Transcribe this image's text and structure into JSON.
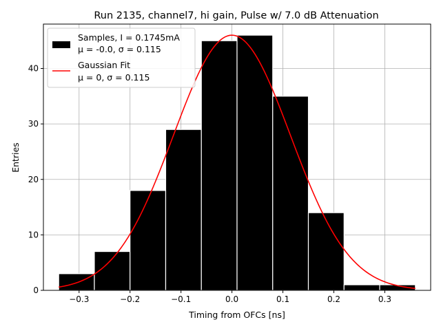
{
  "chart_data": {
    "type": "bar",
    "title": "Run 2135, channel7, hi gain, Pulse w/ 7.0 dB Attenuation",
    "xlabel": "Timing from OFCs [ns]",
    "ylabel": "Entries",
    "xlim": [
      -0.37,
      0.39
    ],
    "ylim": [
      0,
      48
    ],
    "xticks": [
      -0.3,
      -0.2,
      -0.1,
      0.0,
      0.1,
      0.2,
      0.3
    ],
    "xtick_labels": [
      "−0.3",
      "−0.2",
      "−0.1",
      "0.0",
      "0.1",
      "0.2",
      "0.3"
    ],
    "yticks": [
      0,
      10,
      20,
      30,
      40
    ],
    "ytick_labels": [
      "0",
      "10",
      "20",
      "30",
      "40"
    ],
    "grid": true,
    "legend_position": "top-left",
    "histogram": {
      "name_line1": "Samples, I = 0.1745mA",
      "name_line2": "μ = -0.0, σ = 0.115",
      "color": "#000000",
      "edgecolor": "#ffffff",
      "bin_edges": [
        -0.34,
        -0.27,
        -0.2,
        -0.13,
        -0.06,
        0.01,
        0.08,
        0.15,
        0.22,
        0.29,
        0.36
      ],
      "counts": [
        3,
        7,
        18,
        29,
        45,
        46,
        35,
        14,
        1,
        1
      ]
    },
    "fit": {
      "name_line1": "Gaussian Fit",
      "name_line2": "μ = 0, σ = 0.115",
      "color": "#ff0000",
      "mu": 0.0,
      "sigma": 0.115,
      "amplitude": 46.0,
      "x_range": [
        -0.34,
        0.36
      ]
    }
  }
}
